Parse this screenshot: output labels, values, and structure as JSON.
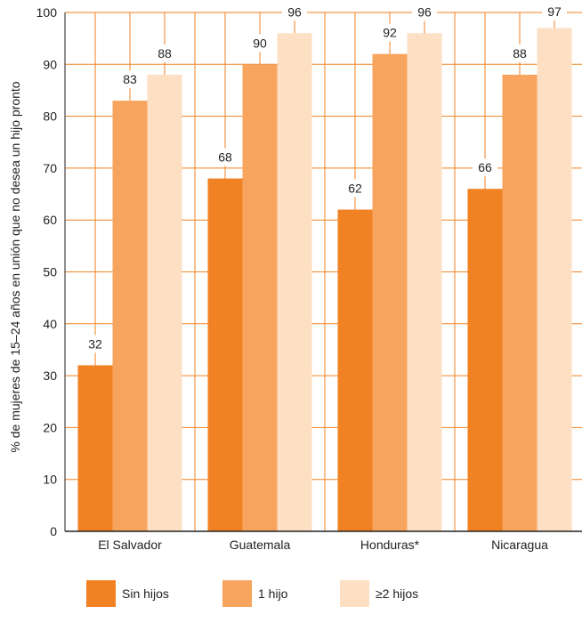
{
  "chart_data": {
    "type": "bar",
    "ylabel": "% de mujeres de 15–24 años en unión que no desea un hijo pronto",
    "ylim": [
      0,
      100
    ],
    "yticks": [
      0,
      10,
      20,
      30,
      40,
      50,
      60,
      70,
      80,
      90,
      100
    ],
    "categories": [
      "El Salvador",
      "Guatemala",
      "Honduras*",
      "Nicaragua"
    ],
    "series": [
      {
        "name": "Sin hijos",
        "color": "#F08223",
        "values": [
          32,
          68,
          62,
          66
        ]
      },
      {
        "name": "1 hijo",
        "color": "#F7A45E",
        "values": [
          83,
          90,
          92,
          88
        ]
      },
      {
        "name": "≥2 hijos",
        "color": "#FDDFC4",
        "values": [
          88,
          96,
          96,
          97
        ]
      }
    ],
    "grid": true,
    "legend": "bottom",
    "grid_color": "#F08223"
  }
}
